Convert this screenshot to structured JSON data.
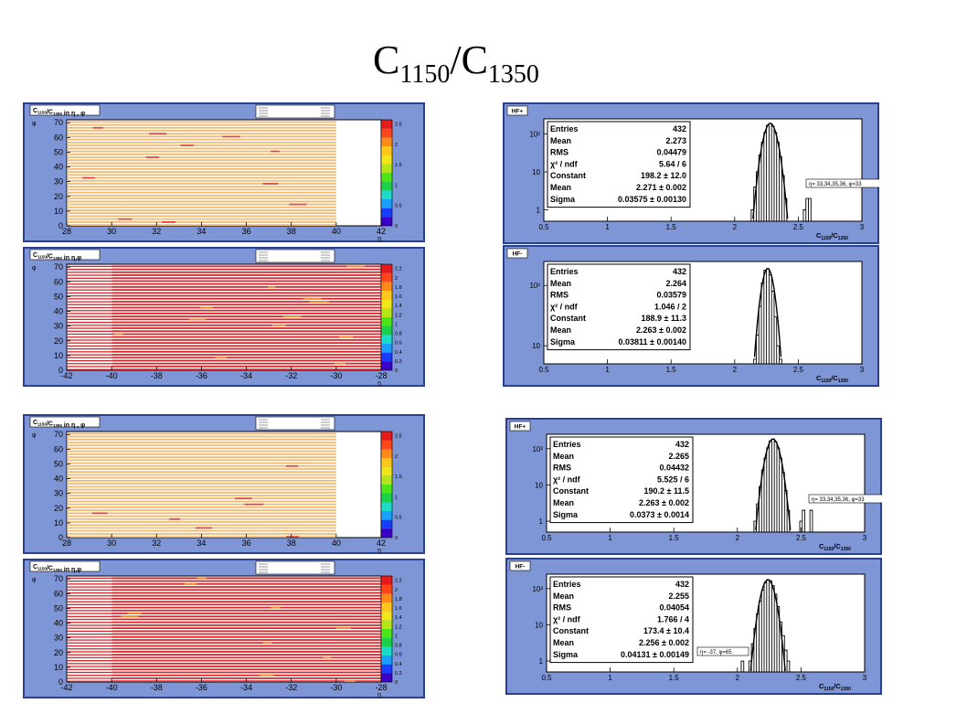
{
  "title": {
    "c1": "C",
    "s1": "1150",
    "slash": "/",
    "c2": "C",
    "s2": "1350"
  },
  "maps": [
    {
      "label_main": "C",
      "label_s1": "1150",
      "label_mid": "/C",
      "label_s2": "1350",
      "label_tail": " in η , φ",
      "xlabel": "η",
      "ylabel": "φ",
      "xticks": [
        "28",
        "30",
        "32",
        "34",
        "36",
        "38",
        "40",
        "42"
      ],
      "yticks": [
        "0",
        "10",
        "20",
        "30",
        "40",
        "50",
        "60",
        "70"
      ],
      "zticks": [
        "0",
        "0.5",
        "1",
        "1.5",
        "2",
        "2.5"
      ],
      "fill": "orange"
    },
    {
      "label_main": "C",
      "label_s1": "1150",
      "label_mid": "/C",
      "label_s2": "1350",
      "label_tail": " in η,φ",
      "xlabel": "η",
      "ylabel": "φ",
      "xticks": [
        "-42",
        "-40",
        "-38",
        "-36",
        "-34",
        "-32",
        "-30",
        "-28"
      ],
      "yticks": [
        "0",
        "10",
        "20",
        "30",
        "40",
        "50",
        "60",
        "70"
      ],
      "zticks": [
        "0",
        "0.2",
        "0.4",
        "0.6",
        "0.8",
        "1",
        "1.2",
        "1.4",
        "1.6",
        "1.8",
        "2",
        "2.2"
      ],
      "fill": "red"
    },
    {
      "label_main": "C",
      "label_s1": "1150",
      "label_mid": "/C",
      "label_s2": "1350",
      "label_tail": " in η , φ",
      "xlabel": "η",
      "ylabel": "φ",
      "xticks": [
        "28",
        "30",
        "32",
        "34",
        "36",
        "38",
        "40",
        "42"
      ],
      "yticks": [
        "0",
        "10",
        "20",
        "30",
        "40",
        "50",
        "60",
        "70"
      ],
      "zticks": [
        "0",
        "0.5",
        "1",
        "1.5",
        "2",
        "2.5"
      ],
      "fill": "orange"
    },
    {
      "label_main": "C",
      "label_s1": "1150",
      "label_mid": "/C",
      "label_s2": "1350",
      "label_tail": " in η,φ",
      "xlabel": "η",
      "ylabel": "φ",
      "xticks": [
        "-42",
        "-40",
        "-38",
        "-36",
        "-34",
        "-32",
        "-30",
        "-28"
      ],
      "yticks": [
        "0",
        "10",
        "20",
        "30",
        "40",
        "50",
        "60",
        "70"
      ],
      "zticks": [
        "0",
        "0.2",
        "0.4",
        "0.6",
        "0.8",
        "1",
        "1.2",
        "1.4",
        "1.6",
        "1.8",
        "2",
        "2.2"
      ],
      "fill": "red"
    }
  ],
  "histos": [
    {
      "tag": "HF+",
      "stats": [
        [
          "Entries",
          "432"
        ],
        [
          "Mean",
          "2.273"
        ],
        [
          "RMS",
          "0.04479"
        ],
        [
          "χ² / ndf",
          "5.64 / 6"
        ],
        [
          "Constant",
          "198.2 ± 12.0"
        ],
        [
          "Mean",
          "2.271 ± 0.002"
        ],
        [
          "Sigma",
          "0.03575 ± 0.00130"
        ]
      ],
      "note": "η= 33,34,35,36, φ=33",
      "xticks": [
        "0.5",
        "1",
        "1.5",
        "2",
        "2.5",
        "3"
      ],
      "yticks": [
        "1",
        "10",
        "10²"
      ],
      "xlabel_main": "C",
      "xlabel_s1": "1150",
      "xlabel_mid": "/C",
      "xlabel_s2": "1350"
    },
    {
      "tag": "HF-",
      "stats": [
        [
          "Entries",
          "432"
        ],
        [
          "Mean",
          "2.264"
        ],
        [
          "RMS",
          "0.03579"
        ],
        [
          "χ² / ndf",
          "1.046 / 2"
        ],
        [
          "Constant",
          "188.9 ± 11.3"
        ],
        [
          "Mean",
          "2.263 ± 0.002"
        ],
        [
          "Sigma",
          "0.03811 ± 0.00140"
        ]
      ],
      "note": "",
      "xticks": [
        "0.5",
        "1",
        "1.5",
        "2",
        "2.5",
        "3"
      ],
      "yticks": [
        "10",
        "10²"
      ],
      "xlabel_main": "C",
      "xlabel_s1": "1150",
      "xlabel_mid": "/C",
      "xlabel_s2": "1350"
    },
    {
      "tag": "HF+",
      "stats": [
        [
          "Entries",
          "432"
        ],
        [
          "Mean",
          "2.265"
        ],
        [
          "RMS",
          "0.04432"
        ],
        [
          "χ² / ndf",
          "5.525 / 6"
        ],
        [
          "Constant",
          "190.2 ± 11.5"
        ],
        [
          "Mean",
          "2.263 ± 0.002"
        ],
        [
          "Sigma",
          "0.0373 ± 0.0014"
        ]
      ],
      "note": "η= 33,34,35,36, φ=33",
      "xticks": [
        "0.5",
        "1",
        "1.5",
        "2",
        "2.5",
        "3"
      ],
      "yticks": [
        "1",
        "10",
        "10²"
      ],
      "xlabel_main": "C",
      "xlabel_s1": "1150",
      "xlabel_mid": "/C",
      "xlabel_s2": "1350"
    },
    {
      "tag": "HF-",
      "stats": [
        [
          "Entries",
          "432"
        ],
        [
          "Mean",
          "2.255"
        ],
        [
          "RMS",
          "0.04054"
        ],
        [
          "χ² / ndf",
          "1.766 / 4"
        ],
        [
          "Constant",
          "173.4 ± 10.4"
        ],
        [
          "Mean",
          "2.256 ± 0.002"
        ],
        [
          "Sigma",
          "0.04131 ± 0.00149"
        ]
      ],
      "note": "η= -37, φ=65",
      "xticks": [
        "0.5",
        "1",
        "1.5",
        "2",
        "2.5",
        "3"
      ],
      "yticks": [
        "1",
        "10",
        "10²"
      ],
      "xlabel_main": "C",
      "xlabel_s1": "1150",
      "xlabel_mid": "/C",
      "xlabel_s2": "1350"
    }
  ],
  "chart_data": [
    {
      "type": "heatmap",
      "xlabel": "η",
      "ylabel": "φ",
      "xlim": [
        28,
        42
      ],
      "ylim": [
        0,
        72
      ],
      "zlim": [
        0,
        2.6
      ],
      "typical_value": 2.27,
      "occupied_eta_range": [
        28,
        40
      ]
    },
    {
      "type": "heatmap",
      "xlabel": "η",
      "ylabel": "φ",
      "xlim": [
        -42,
        -28
      ],
      "ylim": [
        0,
        72
      ],
      "zlim": [
        0,
        2.3
      ],
      "typical_value": 2.26,
      "occupied_eta_range": [
        -40,
        -28
      ]
    },
    {
      "type": "heatmap",
      "xlabel": "η",
      "ylabel": "φ",
      "xlim": [
        28,
        42
      ],
      "ylim": [
        0,
        72
      ],
      "zlim": [
        0,
        2.6
      ],
      "typical_value": 2.265,
      "occupied_eta_range": [
        28,
        40
      ]
    },
    {
      "type": "heatmap",
      "xlabel": "η",
      "ylabel": "φ",
      "xlim": [
        -42,
        -28
      ],
      "ylim": [
        0,
        72
      ],
      "zlim": [
        0,
        2.3
      ],
      "typical_value": 2.256,
      "occupied_eta_range": [
        -40,
        -28
      ]
    },
    {
      "type": "line",
      "title": "HF+",
      "xlim": [
        0.5,
        3
      ],
      "ylog": true,
      "ylim": [
        0.5,
        250
      ],
      "x": [
        2.14,
        2.16,
        2.18,
        2.2,
        2.22,
        2.24,
        2.26,
        2.28,
        2.3,
        2.32,
        2.34,
        2.36,
        2.38,
        2.4,
        2.55,
        2.57,
        2.59
      ],
      "y": [
        1,
        4,
        10,
        28,
        60,
        110,
        170,
        190,
        160,
        110,
        60,
        25,
        8,
        2,
        1,
        2,
        2
      ]
    },
    {
      "type": "line",
      "title": "HF-",
      "xlim": [
        0.5,
        3
      ],
      "ylog": true,
      "ylim": [
        5,
        250
      ],
      "x": [
        2.16,
        2.18,
        2.2,
        2.22,
        2.24,
        2.26,
        2.28,
        2.3,
        2.32,
        2.34,
        2.36
      ],
      "y": [
        6,
        15,
        45,
        110,
        180,
        190,
        150,
        80,
        30,
        10,
        6
      ]
    },
    {
      "type": "line",
      "title": "HF+",
      "xlim": [
        0.5,
        3
      ],
      "ylog": true,
      "ylim": [
        0.5,
        250
      ],
      "x": [
        2.14,
        2.16,
        2.18,
        2.2,
        2.22,
        2.24,
        2.26,
        2.28,
        2.3,
        2.32,
        2.34,
        2.36,
        2.38,
        2.4,
        2.5,
        2.52,
        2.58
      ],
      "y": [
        1,
        3,
        9,
        26,
        55,
        105,
        165,
        185,
        155,
        105,
        55,
        22,
        7,
        2,
        1,
        2,
        2
      ]
    },
    {
      "type": "line",
      "title": "HF-",
      "xlim": [
        0.5,
        3
      ],
      "ylog": true,
      "ylim": [
        0.5,
        250
      ],
      "x": [
        2.04,
        2.1,
        2.12,
        2.14,
        2.16,
        2.18,
        2.2,
        2.22,
        2.24,
        2.26,
        2.28,
        2.3,
        2.32,
        2.34,
        2.36,
        2.38,
        2.4
      ],
      "y": [
        1,
        1,
        3,
        8,
        20,
        45,
        90,
        145,
        175,
        165,
        120,
        70,
        32,
        12,
        5,
        2,
        1
      ]
    }
  ]
}
